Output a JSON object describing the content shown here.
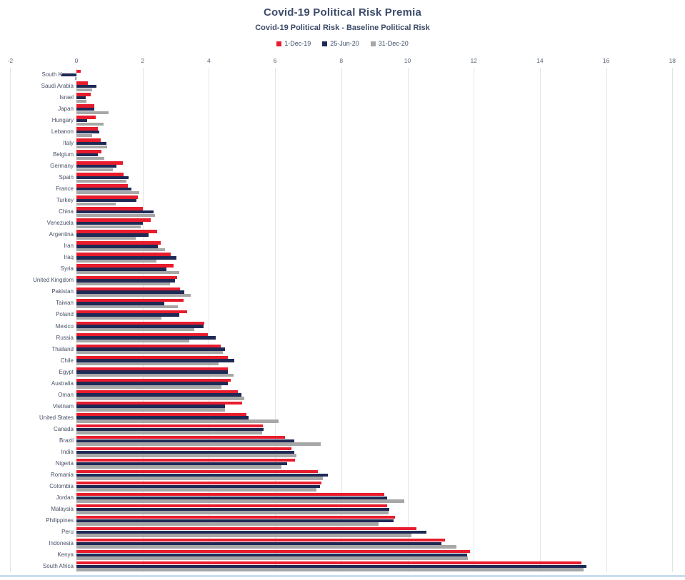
{
  "window": {
    "bottom_border_color": "#c9ddf0"
  },
  "chart_data": {
    "type": "bar",
    "orientation": "horizontal",
    "title": "Covid-19 Political Risk Premia",
    "subtitle": "Covid-19 Political Risk - Baseline Political Risk",
    "title_color": "#3d4c69",
    "legend_position": "top",
    "legend_text_color": "#3d4c69",
    "grid": true,
    "axis": {
      "min": -2,
      "max": 18,
      "step": 2,
      "side": "top",
      "ticks": [
        -2,
        0,
        2,
        4,
        6,
        8,
        10,
        12,
        14,
        16,
        18
      ],
      "label_color": "#5c6677",
      "gridline_color": "#e4e4e4"
    },
    "category_label_color": "#4a5268",
    "categories": [
      "South Korea",
      "Saudi Arabia",
      "Israel",
      "Japan",
      "Hungary",
      "Lebanon",
      "Italy",
      "Belgium",
      "Germany",
      "Spain",
      "France",
      "Turkey",
      "China",
      "Venezuela",
      "Argentina",
      "Iran",
      "Iraq",
      "Syria",
      "United Kingdom",
      "Pakistan",
      "Taiwan",
      "Poland",
      "Mexico",
      "Russia",
      "Thailand",
      "Chile",
      "Egypt",
      "Australia",
      "Oman",
      "Vietnam",
      "United States",
      "Canada",
      "Brazil",
      "India",
      "Nigeria",
      "Romania",
      "Colombia",
      "Jordan",
      "Malaysia",
      "Philippines",
      "Peru",
      "Indonesia",
      "Kenya",
      "South Africa"
    ],
    "series": [
      {
        "name": "1-Dec-19",
        "color": "#e81c2d",
        "values": [
          0.13,
          0.35,
          0.44,
          0.55,
          0.58,
          0.64,
          0.73,
          0.75,
          1.4,
          1.43,
          1.55,
          1.86,
          2.0,
          2.24,
          2.43,
          2.55,
          2.85,
          2.93,
          3.04,
          3.13,
          3.24,
          3.35,
          3.86,
          3.97,
          4.35,
          4.57,
          4.58,
          4.67,
          4.88,
          5.0,
          5.14,
          5.64,
          6.29,
          6.5,
          6.6,
          7.3,
          7.4,
          9.3,
          9.38,
          9.63,
          10.27,
          11.13,
          11.88,
          15.26
        ]
      },
      {
        "name": "25-Jun-20",
        "color": "#1e2a55",
        "values": [
          -0.45,
          0.6,
          0.28,
          0.55,
          0.33,
          0.69,
          0.91,
          0.64,
          1.2,
          1.57,
          1.66,
          1.82,
          2.33,
          2.0,
          2.18,
          2.47,
          3.02,
          2.72,
          2.97,
          3.25,
          2.65,
          3.11,
          3.83,
          4.2,
          4.49,
          4.77,
          4.57,
          4.58,
          4.99,
          4.48,
          5.2,
          5.66,
          6.57,
          6.59,
          6.37,
          7.6,
          7.35,
          9.38,
          9.46,
          9.58,
          10.58,
          11.02,
          11.8,
          15.4
        ]
      },
      {
        "name": "31-Dec-20",
        "color": "#a7a7a7",
        "values": [
          -0.05,
          0.48,
          0.3,
          0.97,
          0.83,
          0.48,
          0.92,
          0.84,
          1.1,
          1.52,
          1.9,
          1.18,
          2.38,
          1.95,
          1.78,
          2.68,
          2.41,
          3.11,
          2.82,
          3.46,
          3.06,
          2.57,
          3.56,
          3.4,
          4.42,
          4.29,
          4.74,
          4.38,
          5.08,
          4.48,
          6.1,
          5.62,
          7.38,
          6.65,
          6.19,
          7.45,
          7.25,
          9.9,
          9.43,
          9.13,
          10.12,
          11.47,
          11.83,
          15.32
        ]
      }
    ]
  }
}
